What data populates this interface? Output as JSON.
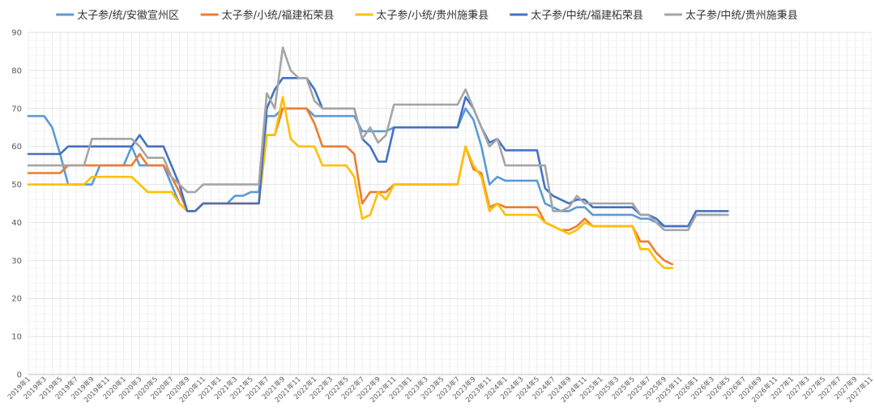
{
  "chart_data": {
    "type": "line",
    "title": "",
    "xlabel": "",
    "ylabel": "",
    "ylim": [
      0,
      90
    ],
    "yticks": [
      0,
      10,
      20,
      30,
      40,
      50,
      60,
      70,
      80,
      90
    ],
    "grid": true,
    "legend_position": "top",
    "x_range_months": [
      "2019-01",
      "2027-11"
    ],
    "x_tick_labels": [
      "2019年1",
      "2019年3",
      "2019年5",
      "2019年7",
      "2019年9",
      "2019年11",
      "2020年1",
      "2020年3",
      "2020年5",
      "2020年7",
      "2020年9",
      "2020年11",
      "2021年1",
      "2021年3",
      "2021年5",
      "2021年7",
      "2021年9",
      "2021年11",
      "2022年1",
      "2022年3",
      "2022年5",
      "2022年7",
      "2022年9",
      "2022年11",
      "2023年1",
      "2023年3",
      "2023年5",
      "2023年7",
      "2023年9",
      "2023年11",
      "2024年1",
      "2024年3",
      "2024年5",
      "2024年7",
      "2024年9",
      "2024年11",
      "2025年1",
      "2025年3",
      "2025年5",
      "2025年7",
      "2025年9",
      "2025年11",
      "2026年1",
      "2026年3",
      "2026年5",
      "2026年7",
      "2026年9",
      "2026年11",
      "2027年1",
      "2027年3",
      "2027年5",
      "2027年7",
      "2027年9",
      "2027年11"
    ],
    "series": [
      {
        "name": "太子参/统/安徽宣州区",
        "color": "#5B9BD5",
        "points": [
          [
            "2019-01",
            68
          ],
          [
            "2019-03",
            68
          ],
          [
            "2019-04",
            65
          ],
          [
            "2019-05",
            58
          ],
          [
            "2019-06",
            50
          ],
          [
            "2019-09",
            50
          ],
          [
            "2019-10",
            55
          ],
          [
            "2020-01",
            55
          ],
          [
            "2020-02",
            60
          ],
          [
            "2020-03",
            55
          ],
          [
            "2020-06",
            55
          ],
          [
            "2020-07",
            50
          ],
          [
            "2020-08",
            45
          ],
          [
            "2020-09",
            43
          ],
          [
            "2020-10",
            43
          ],
          [
            "2020-11",
            45
          ],
          [
            "2021-02",
            45
          ],
          [
            "2021-03",
            47
          ],
          [
            "2021-04",
            47
          ],
          [
            "2021-05",
            48
          ],
          [
            "2021-06",
            48
          ],
          [
            "2021-07",
            68
          ],
          [
            "2021-08",
            68
          ],
          [
            "2021-09",
            70
          ],
          [
            "2021-11",
            70
          ],
          [
            "2021-12",
            70
          ],
          [
            "2022-01",
            68
          ],
          [
            "2022-06",
            68
          ],
          [
            "2022-07",
            64
          ],
          [
            "2022-10",
            64
          ],
          [
            "2022-11",
            65
          ],
          [
            "2023-07",
            65
          ],
          [
            "2023-08",
            70
          ],
          [
            "2023-09",
            67
          ],
          [
            "2023-10",
            60
          ],
          [
            "2023-11",
            50
          ],
          [
            "2023-12",
            52
          ],
          [
            "2024-01",
            51
          ],
          [
            "2024-05",
            51
          ],
          [
            "2024-06",
            45
          ],
          [
            "2024-07",
            44
          ],
          [
            "2024-08",
            43
          ],
          [
            "2024-09",
            43
          ],
          [
            "2024-10",
            44
          ],
          [
            "2024-11",
            44
          ],
          [
            "2024-12",
            42
          ],
          [
            "2025-05",
            42
          ],
          [
            "2025-06",
            41
          ],
          [
            "2025-07",
            41
          ],
          [
            "2025-08",
            40
          ],
          [
            "2025-09",
            39
          ],
          [
            "2025-10",
            39
          ],
          [
            "2025-11",
            39
          ],
          [
            "2025-12",
            39
          ],
          [
            "2026-01",
            42
          ],
          [
            "2026-02",
            42
          ],
          [
            "2026-03",
            42
          ],
          [
            "2026-04",
            42
          ]
        ]
      },
      {
        "name": "太子参/小统/福建柘荣县",
        "color": "#ED7D31",
        "points": [
          [
            "2019-01",
            53
          ],
          [
            "2019-05",
            53
          ],
          [
            "2019-06",
            55
          ],
          [
            "2020-02",
            55
          ],
          [
            "2020-03",
            58
          ],
          [
            "2020-04",
            55
          ],
          [
            "2020-06",
            55
          ],
          [
            "2020-07",
            52
          ],
          [
            "2020-08",
            48
          ],
          [
            "2020-09",
            43
          ],
          [
            "2020-10",
            43
          ],
          [
            "2020-11",
            45
          ],
          [
            "2021-06",
            45
          ],
          [
            "2021-07",
            63
          ],
          [
            "2021-08",
            63
          ],
          [
            "2021-09",
            70
          ],
          [
            "2021-12",
            70
          ],
          [
            "2022-01",
            66
          ],
          [
            "2022-02",
            60
          ],
          [
            "2022-05",
            60
          ],
          [
            "2022-06",
            58
          ],
          [
            "2022-07",
            45
          ],
          [
            "2022-08",
            48
          ],
          [
            "2022-09",
            48
          ],
          [
            "2022-10",
            48
          ],
          [
            "2022-11",
            50
          ],
          [
            "2023-07",
            50
          ],
          [
            "2023-08",
            60
          ],
          [
            "2023-09",
            54
          ],
          [
            "2023-10",
            53
          ],
          [
            "2023-11",
            44
          ],
          [
            "2023-12",
            45
          ],
          [
            "2024-01",
            44
          ],
          [
            "2024-05",
            44
          ],
          [
            "2024-06",
            40
          ],
          [
            "2024-07",
            39
          ],
          [
            "2024-08",
            38
          ],
          [
            "2024-09",
            38
          ],
          [
            "2024-10",
            39
          ],
          [
            "2024-11",
            41
          ],
          [
            "2024-12",
            39
          ],
          [
            "2025-04",
            39
          ],
          [
            "2025-05",
            39
          ],
          [
            "2025-06",
            35
          ],
          [
            "2025-07",
            35
          ],
          [
            "2025-08",
            32
          ],
          [
            "2025-09",
            30
          ],
          [
            "2025-10",
            29
          ]
        ]
      },
      {
        "name": "太子参/小统/贵州施秉县",
        "color": "#FFC000",
        "points": [
          [
            "2019-01",
            50
          ],
          [
            "2019-08",
            50
          ],
          [
            "2019-09",
            52
          ],
          [
            "2020-02",
            52
          ],
          [
            "2020-03",
            50
          ],
          [
            "2020-04",
            48
          ],
          [
            "2020-07",
            48
          ],
          [
            "2020-08",
            45
          ],
          [
            "2020-09",
            43
          ],
          [
            "2020-10",
            43
          ],
          [
            "2020-11",
            45
          ],
          [
            "2021-06",
            45
          ],
          [
            "2021-07",
            63
          ],
          [
            "2021-08",
            63
          ],
          [
            "2021-09",
            73
          ],
          [
            "2021-10",
            62
          ],
          [
            "2021-11",
            60
          ],
          [
            "2022-01",
            60
          ],
          [
            "2022-02",
            55
          ],
          [
            "2022-05",
            55
          ],
          [
            "2022-06",
            52
          ],
          [
            "2022-07",
            41
          ],
          [
            "2022-08",
            42
          ],
          [
            "2022-09",
            48
          ],
          [
            "2022-10",
            46
          ],
          [
            "2022-11",
            50
          ],
          [
            "2023-07",
            50
          ],
          [
            "2023-08",
            60
          ],
          [
            "2023-09",
            55
          ],
          [
            "2023-10",
            52
          ],
          [
            "2023-11",
            43
          ],
          [
            "2023-12",
            45
          ],
          [
            "2024-01",
            42
          ],
          [
            "2024-05",
            42
          ],
          [
            "2024-06",
            40
          ],
          [
            "2024-07",
            39
          ],
          [
            "2024-08",
            38
          ],
          [
            "2024-09",
            37
          ],
          [
            "2024-10",
            38
          ],
          [
            "2024-11",
            40
          ],
          [
            "2024-12",
            39
          ],
          [
            "2025-05",
            39
          ],
          [
            "2025-06",
            33
          ],
          [
            "2025-07",
            33
          ],
          [
            "2025-08",
            30
          ],
          [
            "2025-09",
            28
          ],
          [
            "2025-10",
            28
          ]
        ]
      },
      {
        "name": "太子参/中统/福建柘荣县",
        "color": "#4472C4",
        "points": [
          [
            "2019-01",
            58
          ],
          [
            "2019-05",
            58
          ],
          [
            "2019-06",
            60
          ],
          [
            "2020-02",
            60
          ],
          [
            "2020-03",
            63
          ],
          [
            "2020-04",
            60
          ],
          [
            "2020-06",
            60
          ],
          [
            "2020-07",
            55
          ],
          [
            "2020-08",
            50
          ],
          [
            "2020-09",
            43
          ],
          [
            "2020-10",
            43
          ],
          [
            "2020-11",
            45
          ],
          [
            "2021-06",
            45
          ],
          [
            "2021-07",
            70
          ],
          [
            "2021-08",
            75
          ],
          [
            "2021-09",
            78
          ],
          [
            "2021-12",
            78
          ],
          [
            "2022-01",
            75
          ],
          [
            "2022-02",
            70
          ],
          [
            "2022-06",
            70
          ],
          [
            "2022-07",
            62
          ],
          [
            "2022-08",
            60
          ],
          [
            "2022-09",
            56
          ],
          [
            "2022-10",
            56
          ],
          [
            "2022-11",
            65
          ],
          [
            "2023-07",
            65
          ],
          [
            "2023-08",
            73
          ],
          [
            "2023-09",
            70
          ],
          [
            "2023-10",
            65
          ],
          [
            "2023-11",
            61
          ],
          [
            "2023-12",
            62
          ],
          [
            "2024-01",
            59
          ],
          [
            "2024-05",
            59
          ],
          [
            "2024-06",
            49
          ],
          [
            "2024-07",
            47
          ],
          [
            "2024-08",
            46
          ],
          [
            "2024-09",
            45
          ],
          [
            "2024-10",
            46
          ],
          [
            "2024-11",
            46
          ],
          [
            "2024-12",
            44
          ],
          [
            "2025-05",
            44
          ],
          [
            "2025-06",
            42
          ],
          [
            "2025-07",
            42
          ],
          [
            "2025-08",
            41
          ],
          [
            "2025-09",
            39
          ],
          [
            "2025-10",
            39
          ],
          [
            "2025-11",
            39
          ],
          [
            "2025-12",
            39
          ],
          [
            "2026-01",
            43
          ],
          [
            "2026-02",
            43
          ],
          [
            "2026-03",
            43
          ],
          [
            "2026-04",
            43
          ],
          [
            "2026-05",
            43
          ]
        ]
      },
      {
        "name": "太子参/中统/贵州施秉县",
        "color": "#A5A5A5",
        "points": [
          [
            "2019-01",
            55
          ],
          [
            "2019-08",
            55
          ],
          [
            "2019-09",
            62
          ],
          [
            "2020-02",
            62
          ],
          [
            "2020-03",
            60
          ],
          [
            "2020-04",
            57
          ],
          [
            "2020-06",
            57
          ],
          [
            "2020-07",
            52
          ],
          [
            "2020-08",
            50
          ],
          [
            "2020-09",
            48
          ],
          [
            "2020-10",
            48
          ],
          [
            "2020-11",
            50
          ],
          [
            "2021-06",
            50
          ],
          [
            "2021-07",
            74
          ],
          [
            "2021-08",
            70
          ],
          [
            "2021-09",
            86
          ],
          [
            "2021-10",
            80
          ],
          [
            "2021-11",
            78
          ],
          [
            "2021-12",
            78
          ],
          [
            "2022-01",
            72
          ],
          [
            "2022-02",
            70
          ],
          [
            "2022-06",
            70
          ],
          [
            "2022-07",
            62
          ],
          [
            "2022-08",
            65
          ],
          [
            "2022-09",
            61
          ],
          [
            "2022-10",
            63
          ],
          [
            "2022-11",
            71
          ],
          [
            "2023-07",
            71
          ],
          [
            "2023-08",
            75
          ],
          [
            "2023-09",
            70
          ],
          [
            "2023-10",
            65
          ],
          [
            "2023-11",
            60
          ],
          [
            "2023-12",
            62
          ],
          [
            "2024-01",
            55
          ],
          [
            "2024-05",
            55
          ],
          [
            "2024-06",
            55
          ],
          [
            "2024-07",
            43
          ],
          [
            "2024-08",
            43
          ],
          [
            "2024-09",
            44
          ],
          [
            "2024-10",
            47
          ],
          [
            "2024-11",
            45
          ],
          [
            "2025-05",
            45
          ],
          [
            "2025-06",
            42
          ],
          [
            "2025-07",
            42
          ],
          [
            "2025-08",
            40
          ],
          [
            "2025-09",
            38
          ],
          [
            "2025-12",
            38
          ],
          [
            "2026-01",
            42
          ],
          [
            "2026-02",
            42
          ],
          [
            "2026-03",
            42
          ],
          [
            "2026-04",
            42
          ],
          [
            "2026-05",
            42
          ]
        ]
      }
    ]
  }
}
